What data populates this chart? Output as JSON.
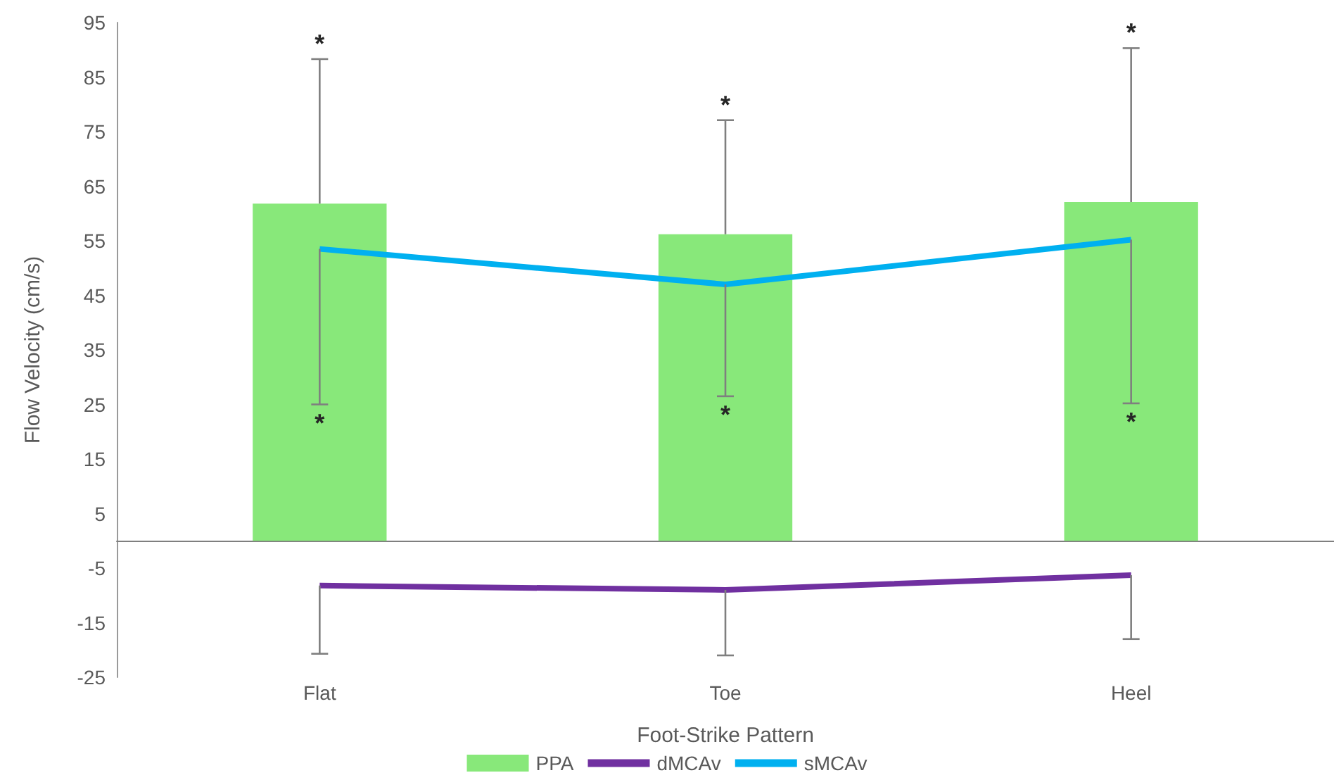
{
  "chart_data": {
    "type": "bar",
    "xlabel": "Foot-Strike Pattern",
    "ylabel": "Flow Velocity (cm/s)",
    "categories": [
      "Flat",
      "Toe",
      "Heel"
    ],
    "series": [
      {
        "name": "PPA",
        "color": "#88e87a",
        "values": [
          61.8,
          56.2,
          62.1
        ],
        "errors": [
          [
            61.8,
            88.3
          ],
          [
            56.2,
            77.1
          ],
          [
            62.1,
            90.3
          ]
        ]
      },
      {
        "name": "dMCAv",
        "type": "line",
        "color": "#7030a0",
        "values": [
          -8.2,
          -9.0,
          -6.3
        ],
        "errors": [
          [
            -20.7,
            -8.2
          ],
          [
            -21.0,
            -9.0
          ],
          [
            -18.0,
            -6.3
          ]
        ]
      },
      {
        "name": "sMCAv",
        "type": "line",
        "color": "#00b0f0",
        "values": [
          53.5,
          47.0,
          55.2
        ],
        "errors": [
          [
            25.0,
            53.5
          ],
          [
            26.5,
            47.0
          ],
          [
            25.2,
            55.2
          ]
        ]
      }
    ],
    "ylim": [
      -25,
      95
    ],
    "yticks": [
      -25,
      -15,
      -5,
      5,
      15,
      25,
      35,
      45,
      55,
      65,
      75,
      85,
      95
    ],
    "grid": false,
    "legend": "bottom",
    "marker": "none",
    "annotations": [
      {
        "text": "*",
        "x": "Flat",
        "y": 88.3
      },
      {
        "text": "*",
        "x": "Flat",
        "y": 25.0
      },
      {
        "text": "*",
        "x": "Toe",
        "y": 77.1
      },
      {
        "text": "*",
        "x": "Toe",
        "y": 26.5
      },
      {
        "text": "*",
        "x": "Heel",
        "y": 90.3
      },
      {
        "text": "*",
        "x": "Heel",
        "y": 25.2
      }
    ]
  }
}
